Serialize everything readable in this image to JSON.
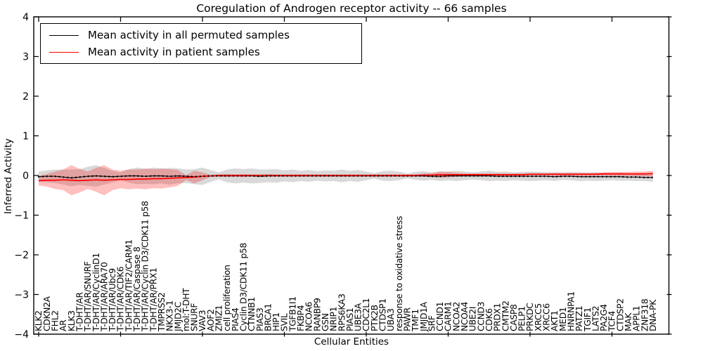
{
  "title": "Coregulation of Androgen receptor activity -- 66 samples",
  "axes": {
    "ylabel": "Inferred Activity",
    "xlabel": "Cellular Entities"
  },
  "legend": {
    "items": [
      {
        "label": "Mean activity in all permuted samples",
        "color": "#000000"
      },
      {
        "label": "Mean activity in patient samples",
        "color": "#ff0000"
      }
    ]
  },
  "chart_data": {
    "type": "line",
    "title": "Coregulation of Androgen receptor activity -- 66 samples",
    "xlabel": "Cellular Entities",
    "ylabel": "Inferred Activity",
    "ylim": [
      -4,
      4
    ],
    "yticks": [
      4,
      3,
      2,
      1,
      0,
      -1,
      -2,
      -3,
      -4
    ],
    "xtick_major_every": 10,
    "grid": false,
    "legend_position": "upper-left",
    "categories": [
      "KLK2",
      "CDKN2A",
      "FHL2",
      "AR",
      "KLK3",
      "T-DHT/AR",
      "T-DHT/AR/SNURF",
      "T-DHT/AR/CyclinD1",
      "T-DHT/AR/ARA70",
      "T-DHT/AR/Ubc9",
      "T-DHT/AR/CDK6",
      "T-DHT/AR/TIF2/CARM1",
      "T-DHT/AR/Caspase 8",
      "T-DHT/AR/Cyclin D3/CDK11 p58",
      "T-DHT/AR/PRX1",
      "TMPRSS2",
      "NKX3-1",
      "JMJD2C",
      "mol:T-DHT",
      "SNURF",
      "VAV3",
      "AOF2",
      "ZMIZ1",
      "cell proliferation",
      "PIAS4",
      "Cyclin D3/CDK11 p58",
      "CTNNB1",
      "PIAS3",
      "BRCA1",
      "HIP1",
      "SVIL",
      "TGFB1I1",
      "FKBP4",
      "NCOA6",
      "RANBP9",
      "GSN",
      "NRIP1",
      "RPS6KA3",
      "PIAS1",
      "UBE3A",
      "CDC2L1",
      "PTK2B",
      "CTDSP1",
      "UBA3",
      "response to oxidative stress",
      "PAWR",
      "TMF1",
      "JMJD1A",
      "SRF",
      "CCND1",
      "CARM1",
      "NCOA2",
      "NCOA4",
      "UBE2I",
      "CCND3",
      "CDK6",
      "PRDX1",
      "CMTM2",
      "CASP8",
      "PELP1",
      "PRKDC",
      "XRCC5",
      "XRCC6",
      "AKT1",
      "MED1",
      "HNRNPA1",
      "PATZ1",
      "TGIF1",
      "LATS2",
      "PA2G4",
      "TCF4",
      "CTDSP2",
      "MAK",
      "APPL1",
      "ZNF318",
      "DNA-PK"
    ],
    "series": [
      {
        "name": "Mean activity in all permuted samples",
        "color": "#000000",
        "line_style": "dashdot",
        "band_color": "#808080",
        "band_opacity": 0.3,
        "values": [
          -0.03,
          -0.02,
          -0.02,
          -0.04,
          -0.06,
          -0.04,
          -0.02,
          -0.01,
          -0.02,
          -0.03,
          -0.02,
          -0.01,
          -0.01,
          -0.02,
          -0.01,
          -0.01,
          -0.02,
          -0.01,
          -0.02,
          -0.03,
          -0.02,
          -0.01,
          -0.01,
          -0.01,
          -0.01,
          -0.01,
          -0.01,
          -0.02,
          -0.01,
          -0.01,
          -0.01,
          -0.01,
          -0.01,
          -0.01,
          -0.01,
          -0.01,
          -0.01,
          -0.01,
          -0.01,
          -0.01,
          -0.01,
          -0.01,
          -0.01,
          -0.01,
          -0.01,
          -0.01,
          -0.01,
          -0.01,
          -0.02,
          -0.02,
          -0.01,
          -0.01,
          -0.01,
          -0.01,
          -0.01,
          -0.01,
          -0.02,
          -0.02,
          -0.02,
          -0.02,
          -0.02,
          -0.02,
          -0.02,
          -0.03,
          -0.02,
          -0.02,
          -0.03,
          -0.03,
          -0.03,
          -0.03,
          -0.03,
          -0.03,
          -0.04,
          -0.04,
          -0.05,
          -0.05
        ],
        "band_halfwidth": [
          0.13,
          0.15,
          0.17,
          0.19,
          0.21,
          0.2,
          0.24,
          0.27,
          0.21,
          0.15,
          0.1,
          0.17,
          0.21,
          0.19,
          0.21,
          0.19,
          0.21,
          0.19,
          0.17,
          0.19,
          0.22,
          0.15,
          0.09,
          0.16,
          0.19,
          0.17,
          0.19,
          0.17,
          0.16,
          0.17,
          0.14,
          0.16,
          0.13,
          0.15,
          0.12,
          0.14,
          0.13,
          0.16,
          0.13,
          0.15,
          0.11,
          0.07,
          0.12,
          0.13,
          0.11,
          0.06,
          0.1,
          0.12,
          0.09,
          0.12,
          0.11,
          0.13,
          0.11,
          0.09,
          0.11,
          0.13,
          0.11,
          0.12,
          0.1,
          0.11,
          0.12,
          0.11,
          0.1,
          0.11,
          0.09,
          0.1,
          0.11,
          0.1,
          0.11,
          0.1,
          0.09,
          0.1,
          0.09,
          0.1,
          0.09,
          0.11
        ]
      },
      {
        "name": "Mean activity in patient samples",
        "color": "#ff0000",
        "line_style": "solid",
        "band_color": "#ff0000",
        "band_opacity": 0.25,
        "values": [
          -0.13,
          -0.12,
          -0.12,
          -0.11,
          -0.12,
          -0.13,
          -0.12,
          -0.11,
          -0.12,
          -0.11,
          -0.1,
          -0.1,
          -0.09,
          -0.09,
          -0.08,
          -0.08,
          -0.07,
          -0.06,
          -0.05,
          -0.04,
          -0.02,
          -0.01,
          0.0,
          0.0,
          0.0,
          0.0,
          0.0,
          0.0,
          0.0,
          0.0,
          0.0,
          0.0,
          0.0,
          0.0,
          0.0,
          0.0,
          0.0,
          0.0,
          0.0,
          0.0,
          0.0,
          0.0,
          0.0,
          0.0,
          0.0,
          0.0,
          0.0,
          0.01,
          0.01,
          0.02,
          0.02,
          0.02,
          0.02,
          0.02,
          0.02,
          0.02,
          0.02,
          0.02,
          0.02,
          0.02,
          0.03,
          0.03,
          0.03,
          0.03,
          0.03,
          0.03,
          0.03,
          0.03,
          0.03,
          0.04,
          0.04,
          0.04,
          0.04,
          0.04,
          0.04,
          0.05
        ],
        "band_halfwidth": [
          0.12,
          0.16,
          0.22,
          0.26,
          0.38,
          0.3,
          0.22,
          0.3,
          0.38,
          0.26,
          0.22,
          0.25,
          0.24,
          0.26,
          0.24,
          0.25,
          0.23,
          0.2,
          0.06,
          0.16,
          0.1,
          0.03,
          0.03,
          0.04,
          0.03,
          0.04,
          0.03,
          0.03,
          0.04,
          0.03,
          0.03,
          0.03,
          0.03,
          0.03,
          0.03,
          0.03,
          0.03,
          0.03,
          0.03,
          0.03,
          0.03,
          0.03,
          0.03,
          0.03,
          0.03,
          0.03,
          0.03,
          0.04,
          0.05,
          0.08,
          0.07,
          0.05,
          0.03,
          0.03,
          0.03,
          0.03,
          0.03,
          0.03,
          0.03,
          0.03,
          0.03,
          0.03,
          0.03,
          0.04,
          0.04,
          0.04,
          0.04,
          0.04,
          0.04,
          0.04,
          0.05,
          0.05,
          0.05,
          0.06,
          0.06,
          0.07
        ]
      }
    ]
  }
}
